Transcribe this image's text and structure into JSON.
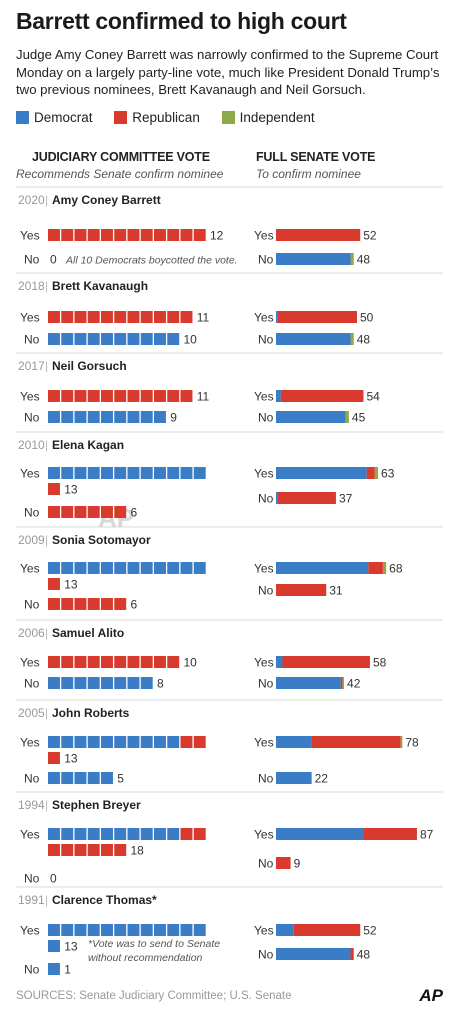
{
  "title": "Barrett confirmed to high court",
  "subtitle": "Judge Amy Coney Barrett was narrowly confirmed to the Supreme Court Monday on a largely party-line vote, much like President Donald Trump’s two previous nominees, Brett Kavanaugh and Neil Gorsuch.",
  "legend": [
    {
      "label": "Democrat",
      "color": "#3a7cc5"
    },
    {
      "label": "Republican",
      "color": "#d83a2e"
    },
    {
      "label": "Independent",
      "color": "#8ea94a"
    }
  ],
  "headers": {
    "committee": "JUDICIARY COMMITTEE VOTE",
    "committee_sub": "Recommends Senate confirm nominee",
    "senate": "FULL SENATE VOTE",
    "senate_sub": "To confirm nominee"
  },
  "sources": "SOURCES: Senate Judiciary Committee; U.S. Senate",
  "logo": "AP",
  "watermark": "AP",
  "chart_data": {
    "type": "bar",
    "series_names": [
      "Democrat",
      "Republican",
      "Independent"
    ],
    "nominees": [
      {
        "year": "2020",
        "name": "Amy Coney Barrett",
        "committee": {
          "yes": {
            "D": 0,
            "R": 12,
            "I": 0,
            "total": 12
          },
          "no": {
            "D": 0,
            "R": 0,
            "I": 0,
            "total": 0
          }
        },
        "senate": {
          "yes": {
            "D": 0,
            "R": 52,
            "I": 0,
            "total": 52
          },
          "no": {
            "D": 46,
            "R": 0,
            "I": 2,
            "total": 48
          }
        },
        "note": "All 10 Democrats boycotted the vote."
      },
      {
        "year": "2018",
        "name": "Brett Kavanaugh",
        "committee": {
          "yes": {
            "D": 0,
            "R": 11,
            "I": 0,
            "total": 11
          },
          "no": {
            "D": 10,
            "R": 0,
            "I": 0,
            "total": 10
          }
        },
        "senate": {
          "yes": {
            "D": 1,
            "R": 49,
            "I": 0,
            "total": 50
          },
          "no": {
            "D": 46,
            "R": 0,
            "I": 2,
            "total": 48
          }
        }
      },
      {
        "year": "2017",
        "name": "Neil Gorsuch",
        "committee": {
          "yes": {
            "D": 0,
            "R": 11,
            "I": 0,
            "total": 11
          },
          "no": {
            "D": 9,
            "R": 0,
            "I": 0,
            "total": 9
          }
        },
        "senate": {
          "yes": {
            "D": 3,
            "R": 51,
            "I": 0,
            "total": 54
          },
          "no": {
            "D": 43,
            "R": 0,
            "I": 2,
            "total": 45
          }
        }
      },
      {
        "year": "2010",
        "name": "Elena Kagan",
        "committee": {
          "yes": {
            "D": 12,
            "R": 1,
            "I": 0,
            "total": 13
          },
          "no": {
            "D": 0,
            "R": 6,
            "I": 0,
            "total": 6
          }
        },
        "senate": {
          "yes": {
            "D": 56,
            "R": 5,
            "I": 2,
            "total": 63
          },
          "no": {
            "D": 1,
            "R": 36,
            "I": 0,
            "total": 37
          }
        }
      },
      {
        "year": "2009",
        "name": "Sonia Sotomayor",
        "committee": {
          "yes": {
            "D": 12,
            "R": 1,
            "I": 0,
            "total": 13
          },
          "no": {
            "D": 0,
            "R": 6,
            "I": 0,
            "total": 6
          }
        },
        "senate": {
          "yes": {
            "D": 57,
            "R": 9,
            "I": 2,
            "total": 68
          },
          "no": {
            "D": 0,
            "R": 31,
            "I": 0,
            "total": 31
          }
        }
      },
      {
        "year": "2006",
        "name": "Samuel Alito",
        "committee": {
          "yes": {
            "D": 0,
            "R": 10,
            "I": 0,
            "total": 10
          },
          "no": {
            "D": 8,
            "R": 0,
            "I": 0,
            "total": 8
          }
        },
        "senate": {
          "yes": {
            "D": 4,
            "R": 54,
            "I": 0,
            "total": 58
          },
          "no": {
            "D": 40,
            "R": 1,
            "I": 1,
            "total": 42
          }
        }
      },
      {
        "year": "2005",
        "name": "John Roberts",
        "committee": {
          "yes": {
            "D": 10,
            "R": 3,
            "I": 0,
            "total": 13
          },
          "no": {
            "D": 5,
            "R": 0,
            "I": 0,
            "total": 5
          }
        },
        "senate": {
          "yes": {
            "D": 22,
            "R": 55,
            "I": 1,
            "total": 78
          },
          "no": {
            "D": 22,
            "R": 0,
            "I": 0,
            "total": 22
          }
        }
      },
      {
        "year": "1994",
        "name": "Stephen Breyer",
        "committee": {
          "yes": {
            "D": 10,
            "R": 8,
            "I": 0,
            "total": 18
          },
          "no": {
            "D": 0,
            "R": 0,
            "I": 0,
            "total": 0
          }
        },
        "senate": {
          "yes": {
            "D": 54,
            "R": 33,
            "I": 0,
            "total": 87
          },
          "no": {
            "D": 0,
            "R": 9,
            "I": 0,
            "total": 9
          }
        }
      },
      {
        "year": "1991",
        "name": "Clarence Thomas*",
        "committee": {
          "yes": {
            "D": 13,
            "R": 0,
            "I": 0,
            "total": 13
          },
          "no": {
            "D": 1,
            "R": 0,
            "I": 0,
            "total": 1
          }
        },
        "senate": {
          "yes": {
            "D": 11,
            "R": 41,
            "I": 0,
            "total": 52
          },
          "no": {
            "D": 46,
            "R": 2,
            "I": 0,
            "total": 48
          }
        },
        "note": "*Vote was to send to Senate without recommendation"
      }
    ]
  }
}
